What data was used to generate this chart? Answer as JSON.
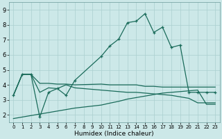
{
  "xlabel": "Humidex (Indice chaleur)",
  "bg_color": "#cce8e8",
  "line_color": "#1a6b5a",
  "grid_color": "#aacfcf",
  "xlim": [
    -0.5,
    23.5
  ],
  "ylim": [
    1.5,
    9.5
  ],
  "xticks": [
    0,
    1,
    2,
    3,
    4,
    5,
    6,
    7,
    8,
    9,
    10,
    11,
    12,
    13,
    14,
    15,
    16,
    17,
    18,
    19,
    20,
    21,
    22,
    23
  ],
  "yticks": [
    2,
    3,
    4,
    5,
    6,
    7,
    8,
    9
  ],
  "curve_x": [
    0,
    1,
    2,
    3,
    4,
    5,
    6,
    7,
    10,
    11,
    12,
    13,
    14,
    15,
    16,
    17,
    18,
    19,
    20,
    21,
    22,
    23
  ],
  "curve_y": [
    3.3,
    4.7,
    4.7,
    1.85,
    3.5,
    3.75,
    3.3,
    4.3,
    5.9,
    6.6,
    7.05,
    8.15,
    8.25,
    8.75,
    7.5,
    7.85,
    6.5,
    6.65,
    3.5,
    3.5,
    3.5,
    3.5
  ],
  "flat1_x": [
    0,
    1,
    2,
    3,
    4,
    5,
    6,
    7,
    10,
    11,
    12,
    13,
    14,
    15,
    16,
    17,
    18,
    19,
    20,
    21,
    22,
    23
  ],
  "flat1_y": [
    3.3,
    4.7,
    4.7,
    4.1,
    4.1,
    4.05,
    4.05,
    4.0,
    4.05,
    4.0,
    4.0,
    4.0,
    4.0,
    3.9,
    3.9,
    3.85,
    3.85,
    3.85,
    3.85,
    3.85,
    3.85,
    3.85
  ],
  "flat2_x": [
    0,
    1,
    2,
    3,
    4,
    5,
    6,
    7,
    10,
    11,
    12,
    13,
    14,
    15,
    16,
    17,
    18,
    19,
    20,
    21,
    22,
    23
  ],
  "flat2_y": [
    3.3,
    4.7,
    4.7,
    3.5,
    3.8,
    3.75,
    4.0,
    3.8,
    3.65,
    3.6,
    3.55,
    3.5,
    3.5,
    3.45,
    3.4,
    3.35,
    3.3,
    3.2,
    3.1,
    2.8,
    2.8,
    2.8
  ],
  "bot_x": [
    0,
    1,
    2,
    3,
    4,
    5,
    6,
    7,
    10,
    11,
    12,
    13,
    14,
    15,
    16,
    17,
    18,
    19,
    20,
    21,
    22,
    23
  ],
  "bot_y": [
    1.75,
    1.85,
    1.95,
    2.05,
    2.15,
    2.25,
    2.35,
    2.45,
    2.65,
    2.78,
    2.9,
    3.05,
    3.15,
    3.25,
    3.35,
    3.45,
    3.5,
    3.55,
    3.6,
    3.65,
    2.7,
    2.7
  ]
}
